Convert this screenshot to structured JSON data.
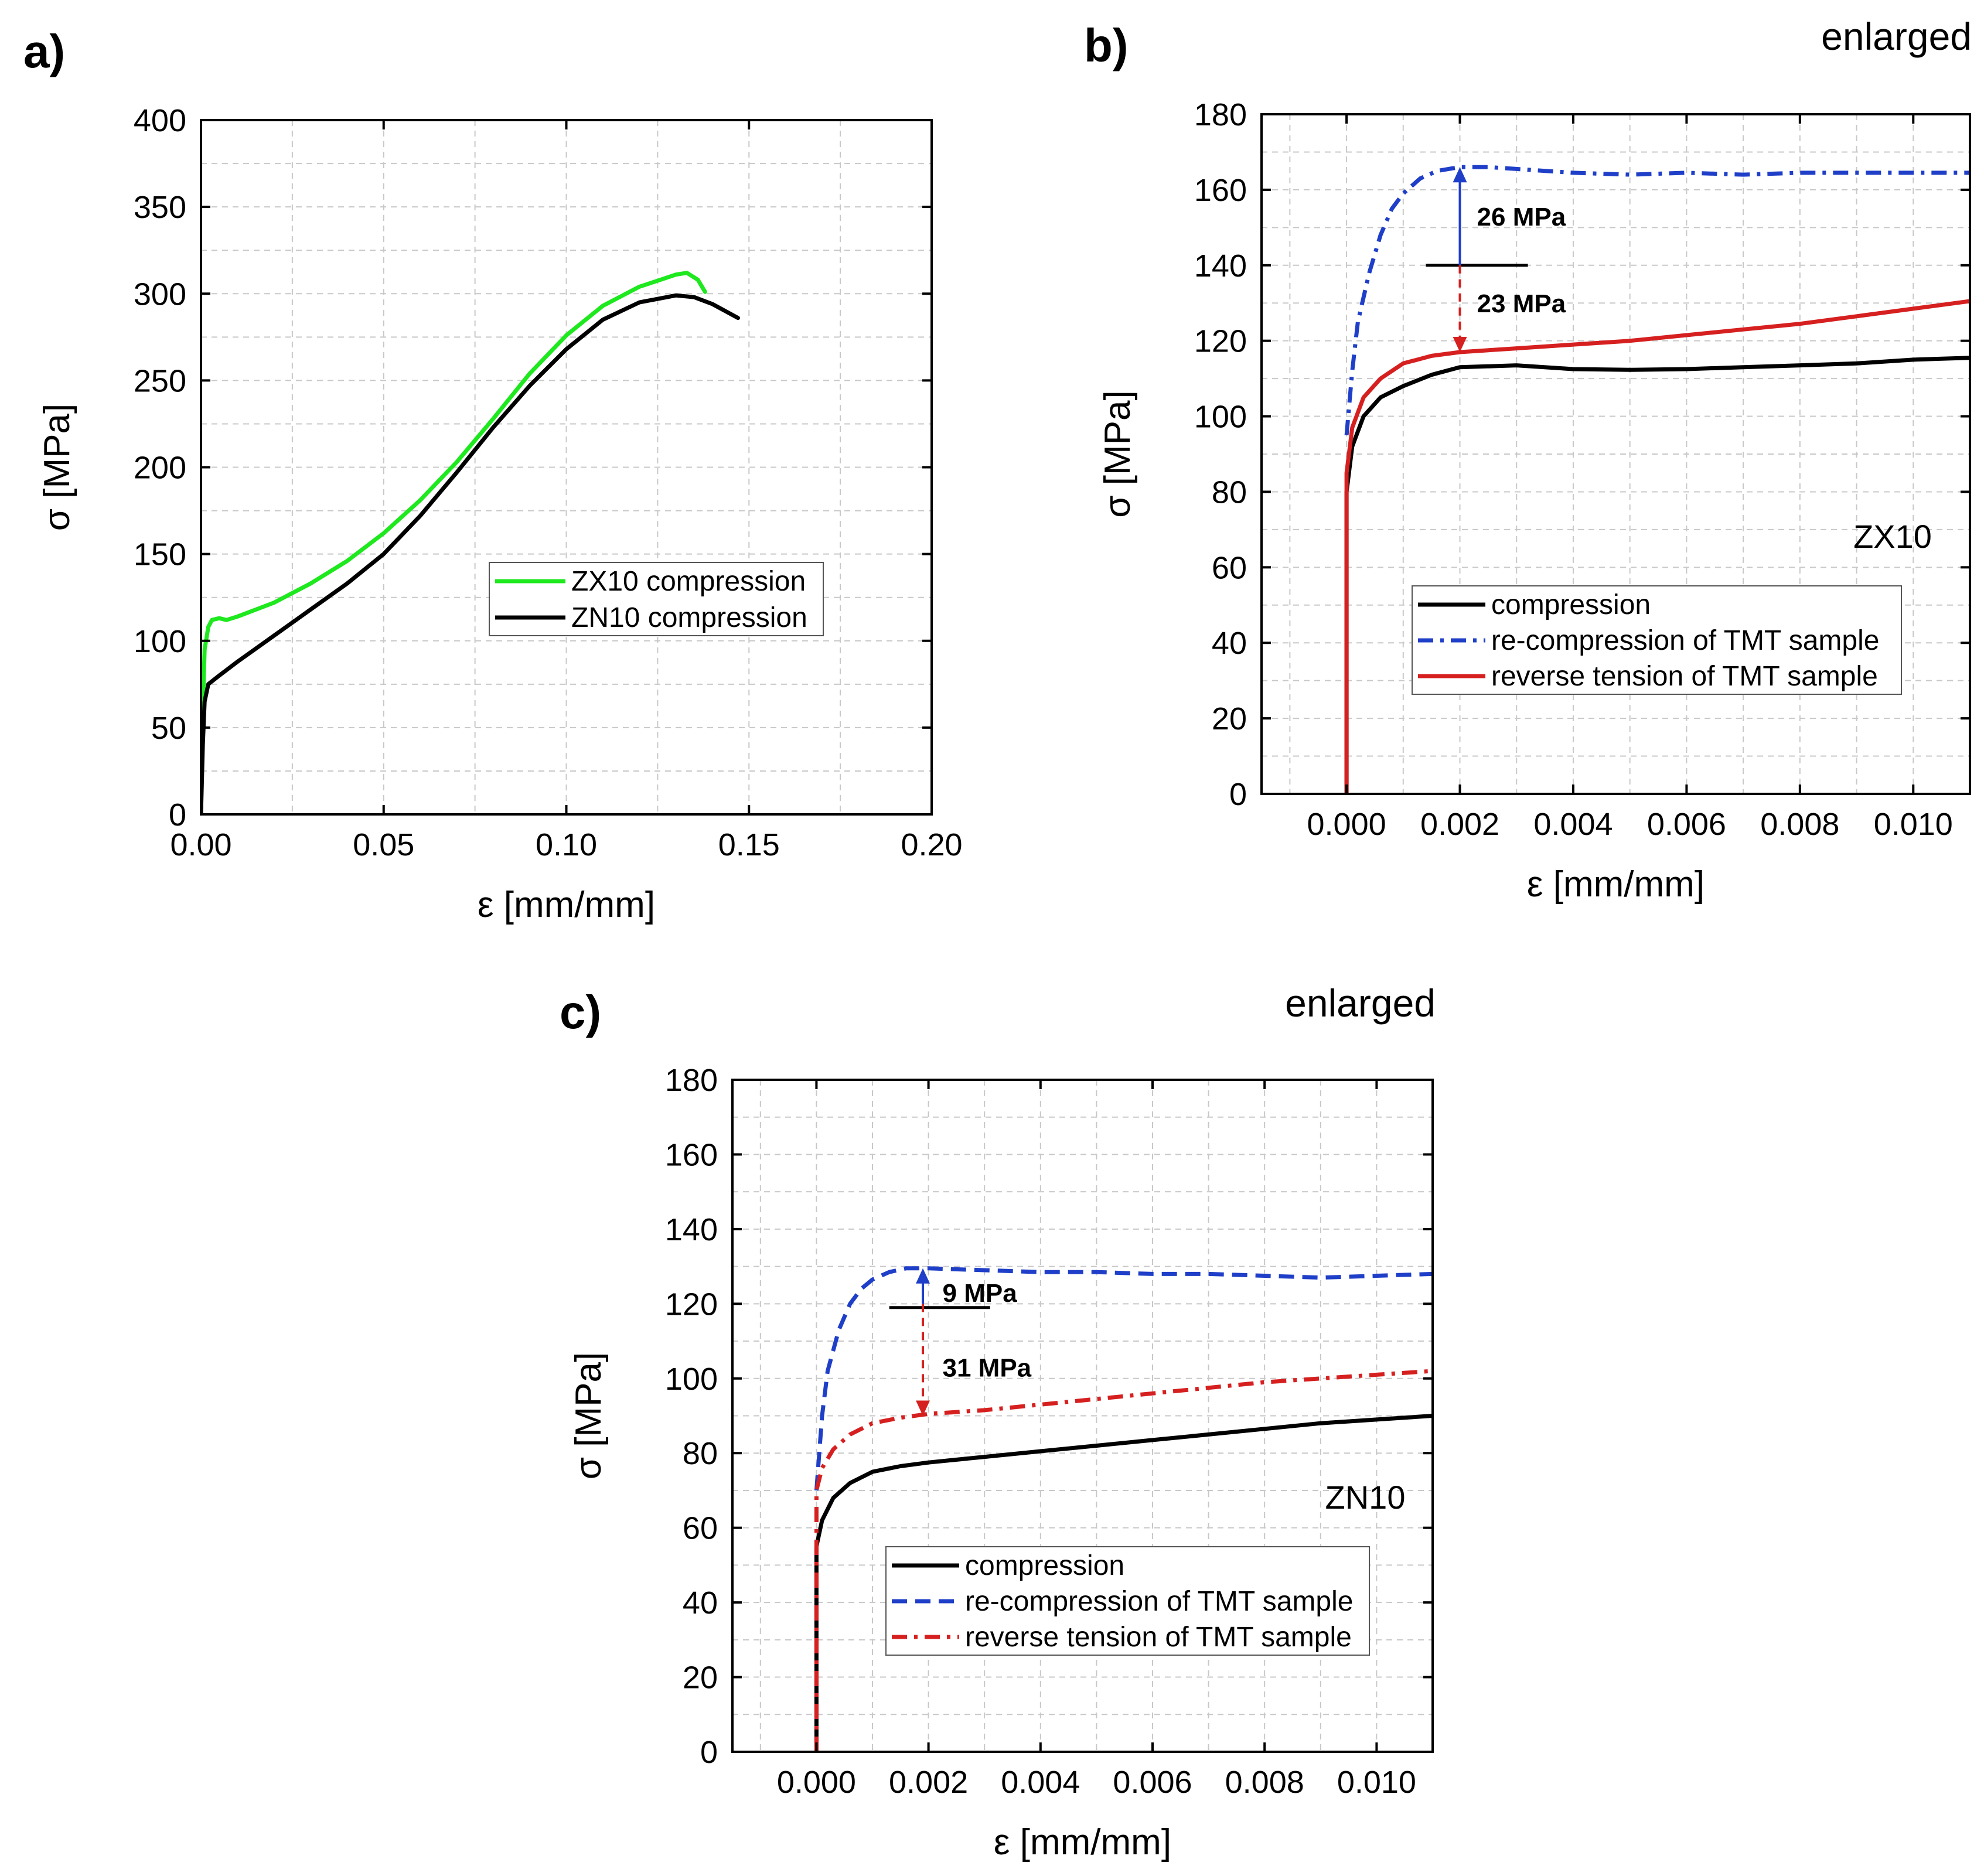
{
  "figure_labels": {
    "a": "a)",
    "b": "b)",
    "c": "c)"
  },
  "colors": {
    "green": "#1ee81e",
    "black": "#000000",
    "blue": "#1f3fc8",
    "red": "#d62020"
  },
  "chart_data": [
    {
      "id": "a",
      "type": "line",
      "panel_label": "a)",
      "xlabel": "ε [mm/mm]",
      "ylabel": "σ [MPa]",
      "xlim": [
        0,
        0.2
      ],
      "ylim": [
        0,
        400
      ],
      "xticks": [
        0,
        0.05,
        0.1,
        0.15,
        0.2
      ],
      "xtick_labels": [
        "0.00",
        "0.05",
        "0.10",
        "0.15",
        "0.20"
      ],
      "yticks": [
        0,
        50,
        100,
        150,
        200,
        250,
        300,
        350,
        400
      ],
      "ytick_labels": [
        "0",
        "50",
        "100",
        "150",
        "200",
        "250",
        "300",
        "350",
        "400"
      ],
      "grid": true,
      "legend_position": "center-right",
      "series": [
        {
          "name": "ZX10 compression",
          "color": "#1ee81e",
          "dash": "solid",
          "points": [
            [
              0,
              0
            ],
            [
              0.0005,
              60
            ],
            [
              0.001,
              95
            ],
            [
              0.002,
              108
            ],
            [
              0.003,
              112
            ],
            [
              0.005,
              113
            ],
            [
              0.007,
              112
            ],
            [
              0.01,
              114
            ],
            [
              0.02,
              122
            ],
            [
              0.03,
              133
            ],
            [
              0.04,
              146
            ],
            [
              0.05,
              162
            ],
            [
              0.06,
              181
            ],
            [
              0.07,
              203
            ],
            [
              0.08,
              228
            ],
            [
              0.09,
              254
            ],
            [
              0.1,
              276
            ],
            [
              0.11,
              293
            ],
            [
              0.12,
              304
            ],
            [
              0.13,
              311
            ],
            [
              0.133,
              312
            ],
            [
              0.136,
              308
            ],
            [
              0.138,
              301
            ]
          ]
        },
        {
          "name": "ZN10 compression",
          "color": "#000000",
          "dash": "solid",
          "points": [
            [
              0,
              0
            ],
            [
              0.0005,
              40
            ],
            [
              0.001,
              65
            ],
            [
              0.002,
              75
            ],
            [
              0.005,
              80
            ],
            [
              0.01,
              88
            ],
            [
              0.02,
              103
            ],
            [
              0.03,
              118
            ],
            [
              0.04,
              133
            ],
            [
              0.05,
              150
            ],
            [
              0.06,
              172
            ],
            [
              0.07,
              197
            ],
            [
              0.08,
              223
            ],
            [
              0.09,
              247
            ],
            [
              0.1,
              268
            ],
            [
              0.11,
              285
            ],
            [
              0.12,
              295
            ],
            [
              0.13,
              299
            ],
            [
              0.135,
              298
            ],
            [
              0.14,
              294
            ],
            [
              0.147,
              286
            ]
          ]
        }
      ]
    },
    {
      "id": "b",
      "type": "line",
      "panel_label": "b)",
      "corner_note": "enlarged",
      "xlabel": "ε [mm/mm]",
      "ylabel": "σ [MPa]",
      "xlim": [
        -0.0015,
        0.011
      ],
      "ylim": [
        0,
        180
      ],
      "xticks": [
        0,
        0.002,
        0.004,
        0.006,
        0.008,
        0.01
      ],
      "xtick_labels": [
        "0.000",
        "0.002",
        "0.004",
        "0.006",
        "0.008",
        "0.010"
      ],
      "yticks": [
        0,
        20,
        40,
        60,
        80,
        100,
        120,
        140,
        160,
        180
      ],
      "ytick_labels": [
        "0",
        "20",
        "40",
        "60",
        "80",
        "100",
        "120",
        "140",
        "160",
        "180"
      ],
      "grid": true,
      "legend_position": "bottom-right",
      "sample_label": "ZX10",
      "series": [
        {
          "name": "compression",
          "color": "#000000",
          "dash": "solid",
          "points": [
            [
              0,
              0
            ],
            [
              0,
              80
            ],
            [
              0.0001,
              92
            ],
            [
              0.0003,
              100
            ],
            [
              0.0006,
              105
            ],
            [
              0.001,
              108
            ],
            [
              0.0015,
              111
            ],
            [
              0.002,
              113
            ],
            [
              0.003,
              113.5
            ],
            [
              0.004,
              112.5
            ],
            [
              0.005,
              112.3
            ],
            [
              0.006,
              112.5
            ],
            [
              0.007,
              113
            ],
            [
              0.008,
              113.5
            ],
            [
              0.009,
              114
            ],
            [
              0.01,
              115
            ],
            [
              0.011,
              115.5
            ]
          ]
        },
        {
          "name": "re-compression of TMT sample",
          "color": "#1f3fc8",
          "dash": "dashdot",
          "points": [
            [
              0,
              95
            ],
            [
              0.0001,
              112
            ],
            [
              0.0002,
              125
            ],
            [
              0.0004,
              138
            ],
            [
              0.0006,
              148
            ],
            [
              0.0008,
              155
            ],
            [
              0.001,
              159
            ],
            [
              0.0013,
              163
            ],
            [
              0.0016,
              165
            ],
            [
              0.002,
              166
            ],
            [
              0.0025,
              166
            ],
            [
              0.003,
              165.5
            ],
            [
              0.004,
              164.5
            ],
            [
              0.005,
              164
            ],
            [
              0.006,
              164.5
            ],
            [
              0.007,
              164
            ],
            [
              0.008,
              164.5
            ],
            [
              0.009,
              164.5
            ],
            [
              0.01,
              164.5
            ],
            [
              0.011,
              164.5
            ]
          ]
        },
        {
          "name": "reverse tension of TMT sample",
          "color": "#d62020",
          "dash": "solid",
          "points": [
            [
              0,
              0
            ],
            [
              0,
              85
            ],
            [
              0.0001,
              97
            ],
            [
              0.0003,
              105
            ],
            [
              0.0006,
              110
            ],
            [
              0.001,
              114
            ],
            [
              0.0015,
              116
            ],
            [
              0.002,
              117
            ],
            [
              0.003,
              118
            ],
            [
              0.004,
              119
            ],
            [
              0.005,
              120
            ],
            [
              0.006,
              121.5
            ],
            [
              0.007,
              123
            ],
            [
              0.008,
              124.5
            ],
            [
              0.009,
              126.5
            ],
            [
              0.01,
              128.5
            ],
            [
              0.011,
              130.5
            ]
          ]
        }
      ],
      "annotations": [
        {
          "text": "26 MPa",
          "x": 0.0023,
          "y": 153
        },
        {
          "text": "23 MPa",
          "x": 0.0023,
          "y": 130
        }
      ],
      "arrows": [
        {
          "color": "#1f3fc8",
          "dash": "solid",
          "x": 0.002,
          "from": 140,
          "to": 166
        },
        {
          "color": "#d62020",
          "dash": "dashed",
          "x": 0.002,
          "from": 140,
          "to": 117
        }
      ],
      "ref_line": {
        "y": 140,
        "x_from": 0.0014,
        "x_to": 0.0032
      }
    },
    {
      "id": "c",
      "type": "line",
      "panel_label": "c)",
      "corner_note": "enlarged",
      "xlabel": "ε [mm/mm]",
      "ylabel": "σ [MPa]",
      "xlim": [
        -0.0015,
        0.011
      ],
      "ylim": [
        0,
        180
      ],
      "xticks": [
        0,
        0.002,
        0.004,
        0.006,
        0.008,
        0.01
      ],
      "xtick_labels": [
        "0.000",
        "0.002",
        "0.004",
        "0.006",
        "0.008",
        "0.010"
      ],
      "yticks": [
        0,
        20,
        40,
        60,
        80,
        100,
        120,
        140,
        160,
        180
      ],
      "ytick_labels": [
        "0",
        "20",
        "40",
        "60",
        "80",
        "100",
        "120",
        "140",
        "160",
        "180"
      ],
      "grid": true,
      "legend_position": "bottom-right",
      "sample_label": "ZN10",
      "series": [
        {
          "name": "compression",
          "color": "#000000",
          "dash": "solid",
          "points": [
            [
              0,
              0
            ],
            [
              0,
              55
            ],
            [
              0.0001,
              62
            ],
            [
              0.0003,
              68
            ],
            [
              0.0006,
              72
            ],
            [
              0.001,
              75
            ],
            [
              0.0015,
              76.5
            ],
            [
              0.002,
              77.5
            ],
            [
              0.003,
              79
            ],
            [
              0.004,
              80.5
            ],
            [
              0.005,
              82
            ],
            [
              0.006,
              83.5
            ],
            [
              0.007,
              85
            ],
            [
              0.008,
              86.5
            ],
            [
              0.009,
              88
            ],
            [
              0.01,
              89
            ],
            [
              0.011,
              90
            ]
          ]
        },
        {
          "name": "re-compression of TMT sample",
          "color": "#1f3fc8",
          "dash": "dashed",
          "points": [
            [
              0,
              70
            ],
            [
              0.0001,
              90
            ],
            [
              0.0002,
              102
            ],
            [
              0.0004,
              113
            ],
            [
              0.0006,
              120
            ],
            [
              0.0008,
              124
            ],
            [
              0.001,
              126.5
            ],
            [
              0.0013,
              128.5
            ],
            [
              0.0016,
              129.5
            ],
            [
              0.002,
              129.5
            ],
            [
              0.003,
              129
            ],
            [
              0.004,
              128.5
            ],
            [
              0.005,
              128.5
            ],
            [
              0.006,
              128
            ],
            [
              0.007,
              128
            ],
            [
              0.008,
              127.5
            ],
            [
              0.009,
              127
            ],
            [
              0.01,
              127.5
            ],
            [
              0.011,
              128
            ]
          ]
        },
        {
          "name": "reverse tension of TMT sample",
          "color": "#d62020",
          "dash": "dashdot",
          "points": [
            [
              0,
              0
            ],
            [
              0,
              70
            ],
            [
              0.0001,
              76
            ],
            [
              0.0003,
              81
            ],
            [
              0.0006,
              85
            ],
            [
              0.001,
              88
            ],
            [
              0.0015,
              89.5
            ],
            [
              0.002,
              90.5
            ],
            [
              0.003,
              91.5
            ],
            [
              0.004,
              93
            ],
            [
              0.005,
              94.5
            ],
            [
              0.006,
              96
            ],
            [
              0.007,
              97.5
            ],
            [
              0.008,
              99
            ],
            [
              0.009,
              100
            ],
            [
              0.01,
              101
            ],
            [
              0.011,
              102
            ]
          ]
        }
      ],
      "annotations": [
        {
          "text": "9 MPa",
          "x": 0.00225,
          "y": 123
        },
        {
          "text": "31 MPa",
          "x": 0.00225,
          "y": 103
        }
      ],
      "arrows": [
        {
          "color": "#1f3fc8",
          "dash": "solid",
          "x": 0.0019,
          "from": 120,
          "to": 129.5
        },
        {
          "color": "#d62020",
          "dash": "dashed",
          "x": 0.0019,
          "from": 120,
          "to": 90
        }
      ],
      "ref_line": {
        "y": 119,
        "x_from": 0.0013,
        "x_to": 0.0031
      }
    }
  ]
}
